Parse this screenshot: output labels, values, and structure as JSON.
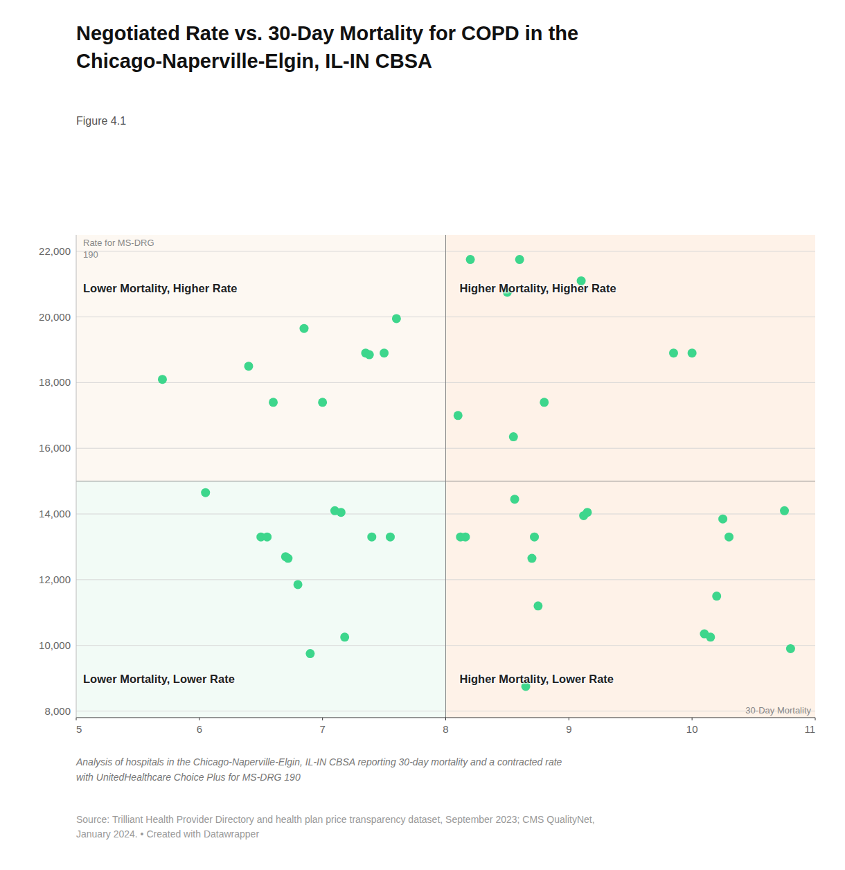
{
  "chart_data": {
    "type": "scatter",
    "title": "Negotiated Rate vs. 30-Day Mortality for COPD in the\nChicago-Naperville-Elgin, IL-IN CBSA",
    "subtitle": "Figure 4.1",
    "y_label": "Rate for MS-DRG\n190",
    "x_label": "30-Day Mortality",
    "quadrant_labels": [
      "Lower Mortality, Higher Rate",
      "Higher Mortality, Higher Rate",
      "Lower Mortality, Lower Rate",
      "Higher Mortality, Lower Rate"
    ],
    "quadrant_colors": [
      "#fdf8f2",
      "#fef2e8",
      "#f2fbf6",
      "#fef2e8"
    ],
    "annotations": [
      "Analysis of hospitals in the Chicago-Naperville-Elgin, IL-IN CBSA reporting 30-day mortality and a contracted rate\nwith UnitedHealthcare Choice Plus for MS-DRG 190",
      "Source: Trilliant Health Provider Directory and health plan price transparency dataset, September 2023; CMS QualityNet,\nJanuary 2024. • Created with Datawrapper"
    ],
    "median_x": 8.0,
    "median_y": 15000,
    "xlim": [
      5,
      11
    ],
    "ylim": [
      7800,
      22500
    ],
    "xticks": [
      5,
      6,
      7,
      8,
      9,
      10,
      11
    ],
    "yticks": [
      {
        "value": 8000,
        "label": "8,000"
      },
      {
        "value": 10000,
        "label": "10,000"
      },
      {
        "value": 12000,
        "label": "12,000"
      },
      {
        "value": 14000,
        "label": "14,000"
      },
      {
        "value": 16000,
        "label": "16,000"
      },
      {
        "value": 18000,
        "label": "18,000"
      },
      {
        "value": 20000,
        "label": "20,000"
      },
      {
        "value": 22000,
        "label": "22,000"
      }
    ],
    "grid": true,
    "color": "#3dd68c",
    "x": [
      5.7,
      6.4,
      6.6,
      6.7,
      6.72,
      6.8,
      6.85,
      7.0,
      7.1,
      7.15,
      7.35,
      7.38,
      7.4,
      7.5,
      7.55,
      7.6,
      6.05,
      6.5,
      6.55,
      7.18,
      6.9,
      8.1,
      8.12,
      8.16,
      8.2,
      8.5,
      8.55,
      8.6,
      8.7,
      8.72,
      8.75,
      8.8,
      8.56,
      8.65,
      9.1,
      9.12,
      9.15,
      9.85,
      10.0,
      10.1,
      10.15,
      10.2,
      10.25,
      10.3,
      10.75,
      10.8
    ],
    "values": [
      18100,
      18500,
      17400,
      12700,
      12650,
      11850,
      19650,
      17400,
      14100,
      14050,
      18900,
      18850,
      13300,
      18900,
      13300,
      19950,
      14650,
      13300,
      13300,
      10250,
      9750,
      17000,
      13300,
      13300,
      21750,
      20750,
      16350,
      21750,
      12650,
      13300,
      11200,
      17400,
      14450,
      8750,
      21100,
      13950,
      14050,
      18900,
      18900,
      10350,
      10250,
      11500,
      13850,
      13300,
      14100,
      9900
    ]
  }
}
